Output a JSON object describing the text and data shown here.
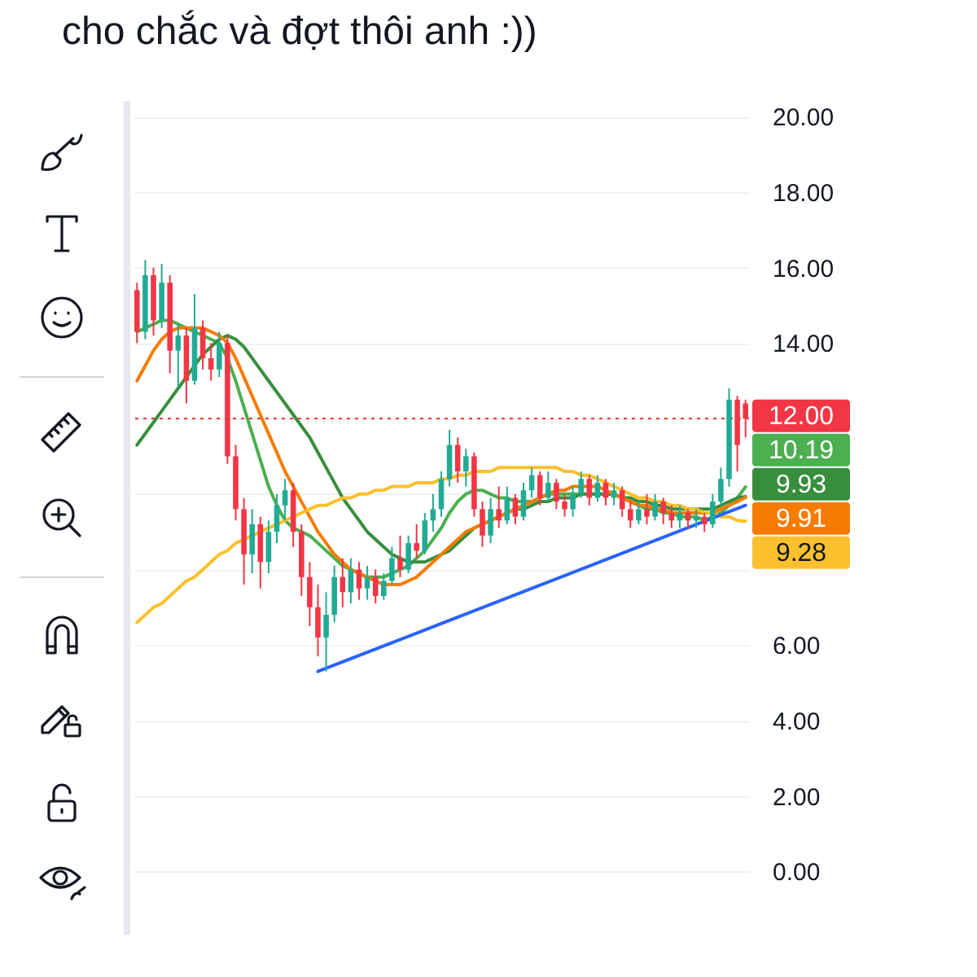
{
  "chart_data": {
    "type": "candlestick",
    "title": "cho chắc và đợt thôi anh :))",
    "categories": [
      null,
      null,
      null,
      null,
      null,
      null,
      null,
      null,
      null,
      null,
      null,
      null,
      null,
      null,
      null,
      null,
      null,
      null,
      null,
      null,
      null,
      null,
      null,
      null,
      null,
      null,
      null,
      null,
      null,
      null,
      null,
      null,
      null,
      null,
      null,
      null,
      null,
      null,
      null,
      null,
      null,
      null,
      null,
      null,
      null,
      null,
      null,
      null,
      null,
      null,
      null,
      null,
      null,
      null,
      null,
      null,
      null,
      null,
      null,
      null,
      null,
      null,
      null,
      null,
      null,
      null,
      null,
      null,
      null,
      null,
      null,
      null,
      null,
      null,
      null
    ],
    "ohlc": [
      [
        15.4,
        15.6,
        14.0,
        14.3
      ],
      [
        14.3,
        16.2,
        14.1,
        15.8
      ],
      [
        15.8,
        16.0,
        14.2,
        14.6
      ],
      [
        14.6,
        16.1,
        14.4,
        15.6
      ],
      [
        15.6,
        15.8,
        13.2,
        13.8
      ],
      [
        13.8,
        14.5,
        12.8,
        14.2
      ],
      [
        14.2,
        14.4,
        12.4,
        13.0
      ],
      [
        13.0,
        15.3,
        12.9,
        14.4
      ],
      [
        14.4,
        14.6,
        13.3,
        13.6
      ],
      [
        13.6,
        14.0,
        13.0,
        13.3
      ],
      [
        13.3,
        14.3,
        13.1,
        14.0
      ],
      [
        14.0,
        14.2,
        10.8,
        11.0
      ],
      [
        11.0,
        11.3,
        9.3,
        9.6
      ],
      [
        9.6,
        9.9,
        7.6,
        8.4
      ],
      [
        8.4,
        9.6,
        7.9,
        9.2
      ],
      [
        9.2,
        9.4,
        7.5,
        8.2
      ],
      [
        8.2,
        9.3,
        7.9,
        9.0
      ],
      [
        9.0,
        10.0,
        8.7,
        9.7
      ],
      [
        9.7,
        10.4,
        9.3,
        10.1
      ],
      [
        10.1,
        10.3,
        8.6,
        9.0
      ],
      [
        9.0,
        9.2,
        7.3,
        7.8
      ],
      [
        7.8,
        8.2,
        6.5,
        7.0
      ],
      [
        7.0,
        7.6,
        5.7,
        6.2
      ],
      [
        6.2,
        7.4,
        5.3,
        6.8
      ],
      [
        6.8,
        8.1,
        6.6,
        7.8
      ],
      [
        7.8,
        8.3,
        7.0,
        7.4
      ],
      [
        7.4,
        8.3,
        7.1,
        8.0
      ],
      [
        8.0,
        8.2,
        7.2,
        7.5
      ],
      [
        7.5,
        8.1,
        7.2,
        7.8
      ],
      [
        7.8,
        8.0,
        7.1,
        7.3
      ],
      [
        7.3,
        7.9,
        7.2,
        7.7
      ],
      [
        7.7,
        8.6,
        7.6,
        8.3
      ],
      [
        8.3,
        8.9,
        7.8,
        8.0
      ],
      [
        8.0,
        8.9,
        7.9,
        8.7
      ],
      [
        8.7,
        9.2,
        8.3,
        8.5
      ],
      [
        8.5,
        9.5,
        8.4,
        9.3
      ],
      [
        9.3,
        10.0,
        9.0,
        9.6
      ],
      [
        9.6,
        10.6,
        9.4,
        10.4
      ],
      [
        10.4,
        11.7,
        10.2,
        11.3
      ],
      [
        11.3,
        11.5,
        10.3,
        10.6
      ],
      [
        10.6,
        11.2,
        10.2,
        11.0
      ],
      [
        11.0,
        11.1,
        9.4,
        9.6
      ],
      [
        9.6,
        9.8,
        8.6,
        8.9
      ],
      [
        8.9,
        9.9,
        8.7,
        9.6
      ],
      [
        9.6,
        10.2,
        9.1,
        9.3
      ],
      [
        9.3,
        10.2,
        9.2,
        9.9
      ],
      [
        9.9,
        10.0,
        9.2,
        9.4
      ],
      [
        9.4,
        10.3,
        9.3,
        10.1
      ],
      [
        10.1,
        10.7,
        9.9,
        10.5
      ],
      [
        10.5,
        10.6,
        9.7,
        9.9
      ],
      [
        9.9,
        10.6,
        9.8,
        10.3
      ],
      [
        10.3,
        10.4,
        9.6,
        9.8
      ],
      [
        9.8,
        10.0,
        9.4,
        9.6
      ],
      [
        9.6,
        10.2,
        9.4,
        10.0
      ],
      [
        10.0,
        10.6,
        9.9,
        10.4
      ],
      [
        10.4,
        10.5,
        9.7,
        9.9
      ],
      [
        9.9,
        10.5,
        9.8,
        10.3
      ],
      [
        10.3,
        10.4,
        9.7,
        9.9
      ],
      [
        9.9,
        10.3,
        9.7,
        10.1
      ],
      [
        10.1,
        10.2,
        9.4,
        9.6
      ],
      [
        9.6,
        9.8,
        9.1,
        9.3
      ],
      [
        9.3,
        9.8,
        9.2,
        9.6
      ],
      [
        9.6,
        10.0,
        9.2,
        9.4
      ],
      [
        9.4,
        10.0,
        9.3,
        9.8
      ],
      [
        9.8,
        9.9,
        9.2,
        9.5
      ],
      [
        9.5,
        9.7,
        9.1,
        9.3
      ],
      [
        9.3,
        9.7,
        9.1,
        9.5
      ],
      [
        9.5,
        9.6,
        9.1,
        9.3
      ],
      [
        9.3,
        9.6,
        9.1,
        9.4
      ],
      [
        9.4,
        9.5,
        9.0,
        9.2
      ],
      [
        9.2,
        10.0,
        9.1,
        9.8
      ],
      [
        9.8,
        10.7,
        9.7,
        10.4
      ],
      [
        10.4,
        12.8,
        10.2,
        12.5
      ],
      [
        12.5,
        12.6,
        10.6,
        11.3
      ],
      [
        12.4,
        12.5,
        11.5,
        12.0
      ]
    ],
    "colors": [
      "#f23645",
      "#22ab94",
      "#f23645",
      "#22ab94",
      "#f23645",
      "#22ab94",
      "#f23645",
      "#22ab94",
      "#f23645",
      "#f23645",
      "#22ab94",
      "#f23645",
      "#f23645",
      "#f23645",
      "#22ab94",
      "#f23645",
      "#22ab94",
      "#22ab94",
      "#22ab94",
      "#f23645",
      "#f23645",
      "#f23645",
      "#f23645",
      "#22ab94",
      "#22ab94",
      "#f23645",
      "#22ab94",
      "#f23645",
      "#22ab94",
      "#f23645",
      "#22ab94",
      "#22ab94",
      "#f23645",
      "#22ab94",
      "#f23645",
      "#22ab94",
      "#22ab94",
      "#22ab94",
      "#22ab94",
      "#f23645",
      "#22ab94",
      "#f23645",
      "#f23645",
      "#22ab94",
      "#f23645",
      "#22ab94",
      "#f23645",
      "#22ab94",
      "#22ab94",
      "#f23645",
      "#22ab94",
      "#f23645",
      "#f23645",
      "#22ab94",
      "#22ab94",
      "#f23645",
      "#22ab94",
      "#f23645",
      "#22ab94",
      "#f23645",
      "#f23645",
      "#22ab94",
      "#f23645",
      "#22ab94",
      "#f23645",
      "#f23645",
      "#22ab94",
      "#f23645",
      "#22ab94",
      "#f23645",
      "#22ab94",
      "#22ab94",
      "#22ab94",
      "#f23645",
      "#f23645"
    ],
    "series": [
      {
        "type": "line",
        "color": "#4caf50",
        "values": [
          14.3,
          14.4,
          14.5,
          14.6,
          14.6,
          14.5,
          14.4,
          14.3,
          14.2,
          14.1,
          14.0,
          13.6,
          13.0,
          12.3,
          11.6,
          10.9,
          10.2,
          9.7,
          9.3,
          9.1,
          9.0,
          8.9,
          8.7,
          8.5,
          8.3,
          8.1,
          8.0,
          7.9,
          7.8,
          7.8,
          7.8,
          7.9,
          8.0,
          8.1,
          8.3,
          8.5,
          8.8,
          9.1,
          9.5,
          9.8,
          10.0,
          10.1,
          10.1,
          10.0,
          9.9,
          9.9,
          9.8,
          9.8,
          9.8,
          9.9,
          10.0,
          10.0,
          10.0,
          10.0,
          10.0,
          10.0,
          10.0,
          10.0,
          10.0,
          9.9,
          9.8,
          9.7,
          9.6,
          9.6,
          9.5,
          9.5,
          9.4,
          9.4,
          9.4,
          9.3,
          9.4,
          9.5,
          9.7,
          9.9,
          10.19
        ],
        "value_labels": [
          null,
          null,
          null,
          null,
          null,
          null,
          null,
          null,
          null,
          null,
          null,
          null,
          null,
          null,
          null,
          null,
          null,
          null,
          null,
          null,
          null,
          null,
          null,
          null,
          null,
          null,
          null,
          null,
          null,
          null,
          null,
          null,
          null,
          null,
          null,
          null,
          null,
          null,
          null,
          null,
          null,
          null,
          null,
          null,
          null,
          null,
          null,
          null,
          null,
          null,
          null,
          null,
          null,
          null,
          null,
          null,
          null,
          null,
          null,
          null,
          null,
          null,
          null,
          null,
          null,
          null,
          null,
          null,
          null,
          null,
          null,
          null,
          null,
          null,
          "10.19"
        ]
      },
      {
        "type": "line",
        "color": "#388e3c",
        "values": [
          11.3,
          11.6,
          11.9,
          12.2,
          12.5,
          12.8,
          13.1,
          13.4,
          13.7,
          13.9,
          14.1,
          14.2,
          14.1,
          13.9,
          13.6,
          13.3,
          13.0,
          12.7,
          12.4,
          12.1,
          11.8,
          11.5,
          11.1,
          10.7,
          10.3,
          9.9,
          9.6,
          9.3,
          9.0,
          8.8,
          8.6,
          8.4,
          8.3,
          8.2,
          8.2,
          8.2,
          8.3,
          8.4,
          8.5,
          8.7,
          8.9,
          9.1,
          9.2,
          9.3,
          9.4,
          9.5,
          9.6,
          9.6,
          9.7,
          9.8,
          9.8,
          9.9,
          9.9,
          9.9,
          10.0,
          10.0,
          10.0,
          10.0,
          10.0,
          9.9,
          9.9,
          9.8,
          9.8,
          9.7,
          9.7,
          9.6,
          9.6,
          9.6,
          9.6,
          9.6,
          9.6,
          9.7,
          9.8,
          9.9,
          9.93
        ],
        "value_labels": [
          null,
          null,
          null,
          null,
          null,
          null,
          null,
          null,
          null,
          null,
          null,
          null,
          null,
          null,
          null,
          null,
          null,
          null,
          null,
          null,
          null,
          null,
          null,
          null,
          null,
          null,
          null,
          null,
          null,
          null,
          null,
          null,
          null,
          null,
          null,
          null,
          null,
          null,
          null,
          null,
          null,
          null,
          null,
          null,
          null,
          null,
          null,
          null,
          null,
          null,
          null,
          null,
          null,
          null,
          null,
          null,
          null,
          null,
          null,
          null,
          null,
          null,
          null,
          null,
          null,
          null,
          null,
          null,
          null,
          null,
          null,
          null,
          null,
          null,
          "9.93"
        ]
      },
      {
        "type": "line",
        "color": "#f57c00",
        "values": [
          13.0,
          13.4,
          13.8,
          14.1,
          14.3,
          14.4,
          14.4,
          14.4,
          14.4,
          14.3,
          14.2,
          14.0,
          13.6,
          13.1,
          12.6,
          12.1,
          11.6,
          11.1,
          10.6,
          10.2,
          9.8,
          9.4,
          9.0,
          8.7,
          8.4,
          8.2,
          8.0,
          7.9,
          7.8,
          7.7,
          7.6,
          7.6,
          7.6,
          7.7,
          7.8,
          8.0,
          8.2,
          8.4,
          8.6,
          8.8,
          9.0,
          9.1,
          9.2,
          9.3,
          9.4,
          9.5,
          9.6,
          9.7,
          9.8,
          9.9,
          10.0,
          10.1,
          10.1,
          10.2,
          10.2,
          10.2,
          10.2,
          10.1,
          10.0,
          9.9,
          9.8,
          9.7,
          9.7,
          9.6,
          9.6,
          9.5,
          9.5,
          9.5,
          9.5,
          9.5,
          9.5,
          9.6,
          9.7,
          9.8,
          9.91
        ],
        "value_labels": [
          null,
          null,
          null,
          null,
          null,
          null,
          null,
          null,
          null,
          null,
          null,
          null,
          null,
          null,
          null,
          null,
          null,
          null,
          null,
          null,
          null,
          null,
          null,
          null,
          null,
          null,
          null,
          null,
          null,
          null,
          null,
          null,
          null,
          null,
          null,
          null,
          null,
          null,
          null,
          null,
          null,
          null,
          null,
          null,
          null,
          null,
          null,
          null,
          null,
          null,
          null,
          null,
          null,
          null,
          null,
          null,
          null,
          null,
          null,
          null,
          null,
          null,
          null,
          null,
          null,
          null,
          null,
          null,
          null,
          null,
          null,
          null,
          null,
          null,
          "9.91"
        ]
      },
      {
        "type": "line",
        "color": "#fbc02d",
        "values": [
          6.6,
          6.8,
          7.0,
          7.1,
          7.3,
          7.5,
          7.7,
          7.8,
          8.0,
          8.2,
          8.4,
          8.5,
          8.7,
          8.8,
          8.9,
          9.0,
          9.1,
          9.2,
          9.3,
          9.4,
          9.5,
          9.6,
          9.7,
          9.7,
          9.8,
          9.9,
          9.9,
          10.0,
          10.0,
          10.1,
          10.1,
          10.2,
          10.2,
          10.2,
          10.3,
          10.3,
          10.3,
          10.4,
          10.4,
          10.5,
          10.5,
          10.6,
          10.6,
          10.6,
          10.7,
          10.7,
          10.7,
          10.7,
          10.7,
          10.7,
          10.7,
          10.7,
          10.6,
          10.6,
          10.5,
          10.5,
          10.4,
          10.3,
          10.2,
          10.1,
          10.0,
          9.9,
          9.9,
          9.8,
          9.8,
          9.7,
          9.7,
          9.6,
          9.6,
          9.5,
          9.5,
          9.4,
          9.4,
          9.3,
          9.28
        ],
        "value_labels": [
          null,
          null,
          null,
          null,
          null,
          null,
          null,
          null,
          null,
          null,
          null,
          null,
          null,
          null,
          null,
          null,
          null,
          null,
          null,
          null,
          null,
          null,
          null,
          null,
          null,
          null,
          null,
          null,
          null,
          null,
          null,
          null,
          null,
          null,
          null,
          null,
          null,
          null,
          null,
          null,
          null,
          null,
          null,
          null,
          null,
          null,
          null,
          null,
          null,
          null,
          null,
          null,
          null,
          null,
          null,
          null,
          null,
          null,
          null,
          null,
          null,
          null,
          null,
          null,
          null,
          null,
          null,
          null,
          null,
          null,
          null,
          null,
          null,
          null,
          "9.28"
        ]
      },
      {
        "type": "line",
        "color": "#2962ff",
        "values": [
          null,
          null,
          null,
          null,
          null,
          null,
          null,
          null,
          null,
          null,
          null,
          null,
          null,
          null,
          null,
          null,
          null,
          null,
          null,
          null,
          null,
          null,
          5.3,
          null,
          null,
          null,
          null,
          null,
          null,
          null,
          null,
          null,
          null,
          null,
          null,
          null,
          null,
          null,
          null,
          null,
          null,
          null,
          null,
          null,
          null,
          null,
          null,
          null,
          null,
          null,
          null,
          null,
          null,
          null,
          null,
          null,
          null,
          null,
          null,
          null,
          null,
          null,
          null,
          null,
          null,
          null,
          null,
          null,
          null,
          null,
          null,
          null,
          null,
          null,
          9.7
        ]
      }
    ],
    "ylim": [
      -1.5,
      20.5
    ],
    "yticks": [
      {
        "value": 0,
        "label": "0.00"
      },
      {
        "value": 2,
        "label": "2.00"
      },
      {
        "value": 4,
        "label": "4.00"
      },
      {
        "value": 6,
        "label": "6.00"
      },
      {
        "value": 8,
        "label": null
      },
      {
        "value": 10,
        "label": null
      },
      {
        "value": 12,
        "label": null
      },
      {
        "value": 14,
        "label": "14.00"
      },
      {
        "value": 16,
        "label": "16.00"
      },
      {
        "value": 18,
        "label": "18.00"
      },
      {
        "value": 20,
        "label": "20.00"
      }
    ],
    "ref_lines": [
      {
        "axis": "y",
        "value": 12,
        "label": "12.00",
        "color": "#f23645",
        "line_style": "dotted"
      }
    ],
    "grid": "y",
    "tick_labels": "y"
  }
}
